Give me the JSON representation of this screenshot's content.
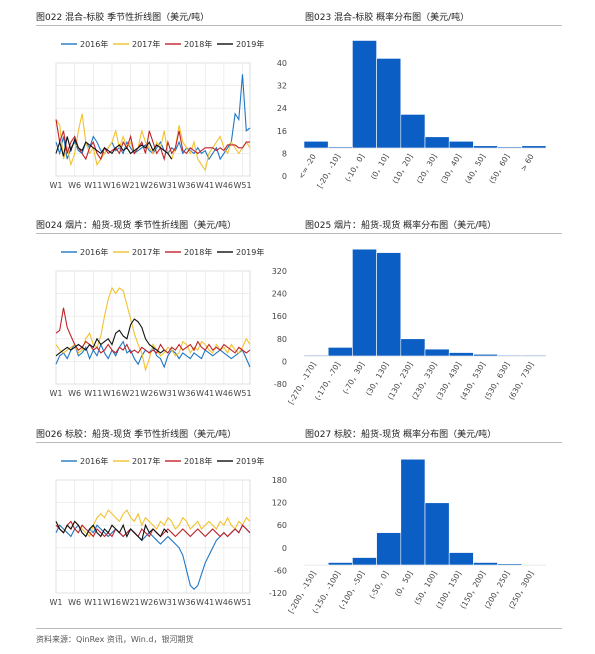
{
  "charts": [
    {
      "id": "c022",
      "caption": "图022 混合-标胶 季节性折线图（美元/吨）",
      "chart_data": {
        "type": "line",
        "title": "",
        "x_ticks": [
          "W1",
          "W6",
          "W11",
          "W16",
          "W21",
          "W26",
          "W31",
          "W36",
          "W41",
          "W46",
          "W51"
        ],
        "x_max_week": 53,
        "y_ticks": [
          0,
          8,
          16,
          24,
          32,
          40
        ],
        "ylim": [
          0,
          40
        ],
        "legend_position": "top",
        "grid": true,
        "series": [
          {
            "name": "2016年",
            "color": "#1f77c4",
            "values": [
              12,
              8,
              14,
              6,
              10,
              12,
              9,
              8,
              12,
              10,
              14,
              12,
              9,
              8,
              10,
              12,
              9,
              10,
              8,
              12,
              10,
              8,
              9,
              10,
              11,
              9,
              8,
              10,
              12,
              9,
              8,
              10,
              9,
              12,
              8,
              10,
              9,
              8,
              10,
              8,
              9,
              6,
              8,
              10,
              6,
              8,
              10,
              12,
              22,
              20,
              36,
              16,
              17
            ]
          },
          {
            "name": "2017年",
            "color": "#f2c12e",
            "values": [
              20,
              18,
              6,
              10,
              4,
              8,
              16,
              22,
              12,
              8,
              10,
              4,
              6,
              8,
              10,
              12,
              16,
              10,
              14,
              10,
              12,
              8,
              10,
              16,
              12,
              10,
              8,
              12,
              10,
              16,
              8,
              6,
              10,
              18,
              12,
              10,
              8,
              12,
              6,
              4,
              2,
              8,
              10,
              12,
              14,
              10,
              8,
              12,
              10,
              8,
              10,
              12,
              10
            ]
          },
          {
            "name": "2018年",
            "color": "#c0232a",
            "values": [
              20,
              12,
              16,
              8,
              12,
              14,
              10,
              8,
              6,
              10,
              12,
              8,
              6,
              10,
              8,
              9,
              10,
              8,
              12,
              10,
              14,
              8,
              10,
              12,
              8,
              16,
              12,
              8,
              10,
              6,
              12,
              8,
              10,
              16,
              9,
              8,
              10,
              9,
              8,
              9,
              10,
              10,
              10,
              9,
              10,
              9,
              11,
              11,
              11,
              10,
              10,
              12,
              12
            ]
          },
          {
            "name": "2019年",
            "color": "#111111",
            "values": [
              8,
              12,
              7,
              14,
              9,
              13,
              10,
              9,
              12,
              11,
              10,
              9,
              8,
              10,
              9,
              8,
              10,
              11,
              9,
              10,
              8,
              9,
              10,
              11,
              10,
              12,
              9,
              11,
              10,
              9,
              8,
              6
            ]
          }
        ]
      }
    },
    {
      "id": "c023",
      "caption": "图023 混合-标胶 概率分布图（美元/吨）",
      "chart_data": {
        "type": "bar",
        "title": "",
        "categories": [
          "<= -20",
          "[-20，-10]",
          "(-10，0]",
          "(0，10]",
          "(10，20]",
          "(20，30]",
          "(30，40]",
          "(40，50]",
          "(50，60]",
          "> 60"
        ],
        "values": [
          3,
          0.5,
          48,
          40,
          15,
          5,
          3,
          1,
          0.5,
          1
        ],
        "ylim": [
          0,
          50
        ],
        "color": "#0b5fc4"
      }
    },
    {
      "id": "c024",
      "caption": "图024 烟片：船货-现货 季节性折线图（美元/吨）",
      "chart_data": {
        "type": "line",
        "title": "",
        "x_ticks": [
          "W1",
          "W6",
          "W11",
          "W16",
          "W21",
          "W26",
          "W31",
          "W36",
          "W41",
          "W46",
          "W51"
        ],
        "x_max_week": 53,
        "y_ticks": [
          -80,
          0,
          80,
          160,
          240,
          320
        ],
        "ylim": [
          -80,
          320
        ],
        "legend_position": "top",
        "grid": true,
        "series": [
          {
            "name": "2016年",
            "color": "#1f77c4",
            "values": [
              -10,
              20,
              30,
              10,
              40,
              60,
              20,
              30,
              50,
              10,
              40,
              20,
              60,
              30,
              10,
              40,
              20,
              50,
              70,
              30,
              40,
              10,
              -10,
              20,
              40,
              30,
              50,
              20,
              10,
              -20,
              20,
              40,
              30,
              10,
              30,
              20,
              10,
              30,
              20,
              10,
              40,
              30,
              20,
              30,
              40,
              30,
              20,
              10,
              20,
              30,
              40,
              10,
              -20
            ]
          },
          {
            "name": "2017年",
            "color": "#f2c12e",
            "values": [
              60,
              40,
              30,
              40,
              50,
              60,
              30,
              40,
              80,
              100,
              60,
              50,
              90,
              160,
              220,
              260,
              240,
              260,
              250,
              200,
              150,
              100,
              60,
              30,
              -30,
              10,
              60,
              40,
              20,
              30,
              50,
              40,
              20,
              30,
              70,
              60,
              30,
              50,
              40,
              70,
              60,
              40,
              30,
              60,
              40,
              50,
              30,
              60,
              40,
              30,
              50,
              80,
              60
            ]
          },
          {
            "name": "2018年",
            "color": "#c0232a",
            "values": [
              100,
              110,
              190,
              120,
              90,
              60,
              40,
              50,
              70,
              60,
              40,
              50,
              30,
              40,
              60,
              40,
              30,
              50,
              40,
              60,
              30,
              40,
              30,
              50,
              40,
              30,
              40,
              30,
              60,
              40,
              30,
              50,
              40,
              60,
              40,
              50,
              60,
              40,
              70,
              50,
              40,
              60,
              40,
              50,
              40,
              60,
              50,
              40,
              30,
              50,
              40,
              30,
              40
            ]
          },
          {
            "name": "2019年",
            "color": "#111111",
            "values": [
              20,
              30,
              40,
              50,
              40,
              50,
              60,
              50,
              40,
              60,
              50,
              80,
              60,
              70,
              80,
              60,
              100,
              110,
              90,
              80,
              130,
              150,
              140,
              120,
              80,
              60,
              50,
              40,
              30,
              40
            ]
          }
        ]
      }
    },
    {
      "id": "c025",
      "caption": "图025 烟片：船货-现货 概率分布图（美元/吨）",
      "chart_data": {
        "type": "bar",
        "title": "",
        "categories": [
          "[-270，-170]",
          "(-170，-70]",
          "(-70，30]",
          "(30，130]",
          "(130，230]",
          "(230，330]",
          "(330，430]",
          "(430，530]",
          "(530，630]",
          "(630，730]"
        ],
        "values": [
          0.5,
          5,
          62,
          60,
          10,
          4,
          2,
          1,
          0.5,
          0.5
        ],
        "ylim": [
          0,
          65
        ],
        "color": "#0b5fc4"
      }
    },
    {
      "id": "c026",
      "caption": "图026 标胶：船货-现货 季节性折线图（美元/吨）",
      "chart_data": {
        "type": "line",
        "title": "",
        "x_ticks": [
          "W1",
          "W6",
          "W11",
          "W16",
          "W21",
          "W26",
          "W31",
          "W36",
          "W41",
          "W46",
          "W51"
        ],
        "x_max_week": 53,
        "y_ticks": [
          -120,
          -60,
          0,
          60,
          120,
          180
        ],
        "ylim": [
          -120,
          180
        ],
        "legend_position": "top",
        "grid": true,
        "series": [
          {
            "name": "2016年",
            "color": "#1f77c4",
            "values": [
              40,
              60,
              50,
              40,
              30,
              50,
              60,
              40,
              30,
              50,
              40,
              60,
              50,
              40,
              30,
              40,
              50,
              40,
              30,
              40,
              50,
              40,
              30,
              20,
              30,
              40,
              30,
              20,
              10,
              20,
              30,
              20,
              10,
              0,
              -20,
              -60,
              -100,
              -110,
              -100,
              -70,
              -40,
              -20,
              0,
              20,
              30,
              40,
              30,
              40,
              50,
              40,
              60,
              50,
              40
            ]
          },
          {
            "name": "2017年",
            "color": "#f2c12e",
            "values": [
              70,
              50,
              40,
              60,
              50,
              70,
              60,
              50,
              40,
              30,
              60,
              80,
              90,
              80,
              100,
              90,
              80,
              70,
              90,
              100,
              80,
              70,
              90,
              60,
              80,
              70,
              60,
              50,
              70,
              60,
              80,
              70,
              50,
              60,
              80,
              70,
              50,
              60,
              70,
              50,
              60,
              70,
              60,
              50,
              70,
              60,
              80,
              60,
              50,
              70,
              60,
              80,
              70
            ]
          },
          {
            "name": "2018年",
            "color": "#c0232a",
            "values": [
              60,
              50,
              40,
              60,
              70,
              50,
              40,
              60,
              50,
              40,
              30,
              50,
              40,
              30,
              40,
              30,
              50,
              40,
              30,
              40,
              50,
              40,
              30,
              50,
              40,
              30,
              50,
              40,
              30,
              40,
              50,
              40,
              30,
              40,
              50,
              40,
              30,
              40,
              50,
              40,
              30,
              40,
              50,
              40,
              30,
              40,
              30,
              40,
              50,
              40,
              60,
              50,
              40
            ]
          },
          {
            "name": "2019年",
            "color": "#111111",
            "values": [
              70,
              50,
              40,
              60,
              50,
              70,
              60,
              40,
              30,
              50,
              60,
              40,
              30,
              50,
              40,
              60,
              50,
              40,
              60,
              30,
              50,
              40,
              30,
              20,
              60,
              40,
              50,
              40,
              30,
              50,
              40
            ]
          }
        ]
      }
    },
    {
      "id": "c027",
      "caption": "图027 标胶：船货-现货 概率分布图（美元/吨）",
      "chart_data": {
        "type": "bar",
        "title": "",
        "categories": [
          "[-200，-150]",
          "(-150，-100]",
          "(-100，-50]",
          "(-50，0]",
          "(0，50]",
          "(50，100]",
          "(100，150]",
          "(150，200]",
          "(200，250]",
          "(250，300]"
        ],
        "values": [
          0.5,
          2,
          6,
          26,
          85,
          50,
          10,
          2,
          1,
          0.5
        ],
        "ylim": [
          0,
          90
        ],
        "color": "#0b5fc4"
      }
    }
  ],
  "footer": "资料来源：QinRex 资讯，Win.d，银河期货"
}
